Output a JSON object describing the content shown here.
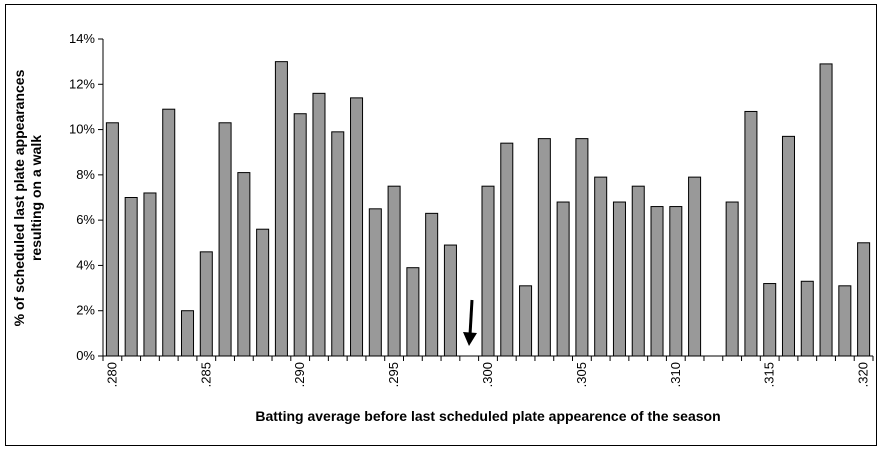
{
  "chart_data": {
    "type": "bar",
    "x_label": "Batting average before last scheduled plate appearence of the season",
    "y_label": [
      "% of scheduled last plate appearances",
      "resulting on a walk"
    ],
    "categories": [
      ".280",
      null,
      null,
      null,
      null,
      ".285",
      null,
      null,
      null,
      null,
      ".290",
      null,
      null,
      null,
      null,
      ".295",
      null,
      null,
      null,
      null,
      ".300",
      null,
      null,
      null,
      null,
      ".305",
      null,
      null,
      null,
      null,
      ".310",
      null,
      null,
      null,
      null,
      ".315",
      null,
      null,
      null,
      null,
      ".320"
    ],
    "values": [
      10.3,
      7.0,
      7.2,
      10.9,
      2.0,
      4.6,
      10.3,
      8.1,
      5.6,
      13.0,
      10.7,
      11.6,
      9.9,
      11.4,
      6.5,
      7.5,
      3.9,
      6.3,
      4.9,
      0,
      7.5,
      9.4,
      3.1,
      9.6,
      6.8,
      9.6,
      7.9,
      6.8,
      7.5,
      6.6,
      6.6,
      7.9,
      0,
      6.8,
      10.8,
      3.2,
      9.7,
      3.3,
      12.9,
      3.1,
      5.0
    ],
    "color": "#999999",
    "ylim": [
      0,
      14
    ],
    "yticks": [
      {
        "value": 0,
        "label": "0%"
      },
      {
        "value": 2,
        "label": "2%"
      },
      {
        "value": 4,
        "label": "4%"
      },
      {
        "value": 6,
        "label": "6%"
      },
      {
        "value": 8,
        "label": "8%"
      },
      {
        "value": 10,
        "label": "10%"
      },
      {
        "value": 12,
        "label": "12%"
      },
      {
        "value": 14,
        "label": "14%"
      }
    ],
    "grid": false
  }
}
